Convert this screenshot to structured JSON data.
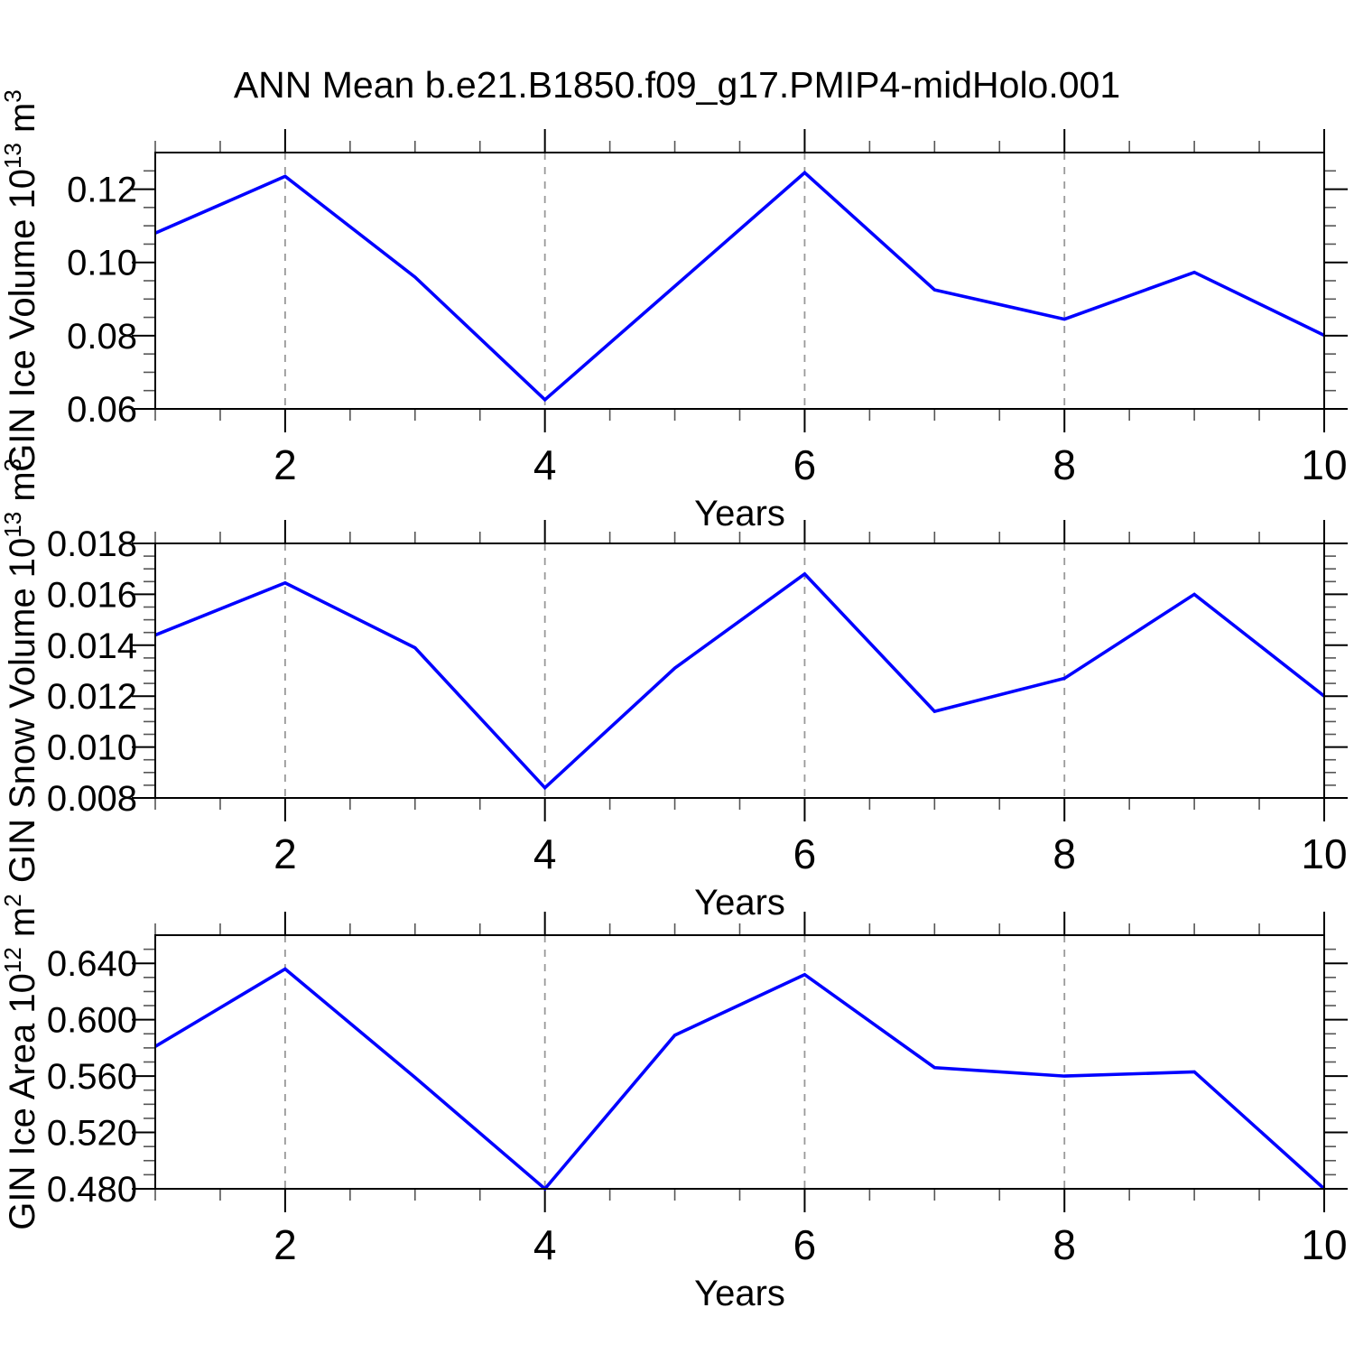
{
  "title": "ANN Mean b.e21.B1850.f09_g17.PMIP4-midHolo.001",
  "colors": {
    "line": "#0000ff",
    "grid": "#999999",
    "frame": "#000000",
    "minor_tick": "#555555"
  },
  "x_axis": {
    "label": "Years",
    "range": [
      1,
      10
    ],
    "major_ticks": [
      2,
      4,
      6,
      8,
      10
    ],
    "major_tick_labels": [
      "2",
      "4",
      "6",
      "8",
      "10"
    ],
    "minor_step": 0.5,
    "grid_lines_at": [
      2,
      4,
      6,
      8
    ]
  },
  "chart_data": [
    {
      "type": "line",
      "name": "gin-ice-volume",
      "ylabel": "GIN Ice Volume 10^13^ m^3^",
      "xlabel": "Years",
      "ylim": [
        0.06,
        0.13
      ],
      "yticks": [
        0.06,
        0.08,
        0.1,
        0.12
      ],
      "ytick_labels": [
        "0.06",
        "0.08",
        "0.10",
        "0.12"
      ],
      "y_minor_step": 0.005,
      "x": [
        1,
        2,
        3,
        4,
        5,
        6,
        7,
        8,
        9,
        10
      ],
      "values": [
        0.108,
        0.1235,
        0.096,
        0.0625,
        0.0935,
        0.1245,
        0.0925,
        0.0845,
        0.0973,
        0.0801
      ]
    },
    {
      "type": "line",
      "name": "gin-snow-volume",
      "ylabel": "GIN Snow Volume 10^13^ m^3^",
      "xlabel": "Years",
      "ylim": [
        0.008,
        0.018
      ],
      "yticks": [
        0.008,
        0.01,
        0.012,
        0.014,
        0.016,
        0.018
      ],
      "ytick_labels": [
        "0.008",
        "0.010",
        "0.012",
        "0.014",
        "0.016",
        "0.018"
      ],
      "y_minor_step": 0.0005,
      "x": [
        1,
        2,
        3,
        4,
        5,
        6,
        7,
        8,
        9,
        10
      ],
      "values": [
        0.0144,
        0.01645,
        0.0139,
        0.0084,
        0.0131,
        0.0168,
        0.0114,
        0.0127,
        0.016,
        0.012
      ]
    },
    {
      "type": "line",
      "name": "gin-ice-area",
      "ylabel": "GIN Ice Area 10^12^ m^2^",
      "xlabel": "Years",
      "ylim": [
        0.48,
        0.66
      ],
      "yticks": [
        0.48,
        0.52,
        0.56,
        0.6,
        0.64
      ],
      "ytick_labels": [
        "0.480",
        "0.520",
        "0.560",
        "0.600",
        "0.640"
      ],
      "y_minor_step": 0.01,
      "x": [
        1,
        2,
        3,
        4,
        5,
        6,
        7,
        8,
        9,
        10
      ],
      "values": [
        0.581,
        0.636,
        0.559,
        0.48,
        0.589,
        0.632,
        0.566,
        0.56,
        0.563,
        0.48
      ]
    }
  ]
}
